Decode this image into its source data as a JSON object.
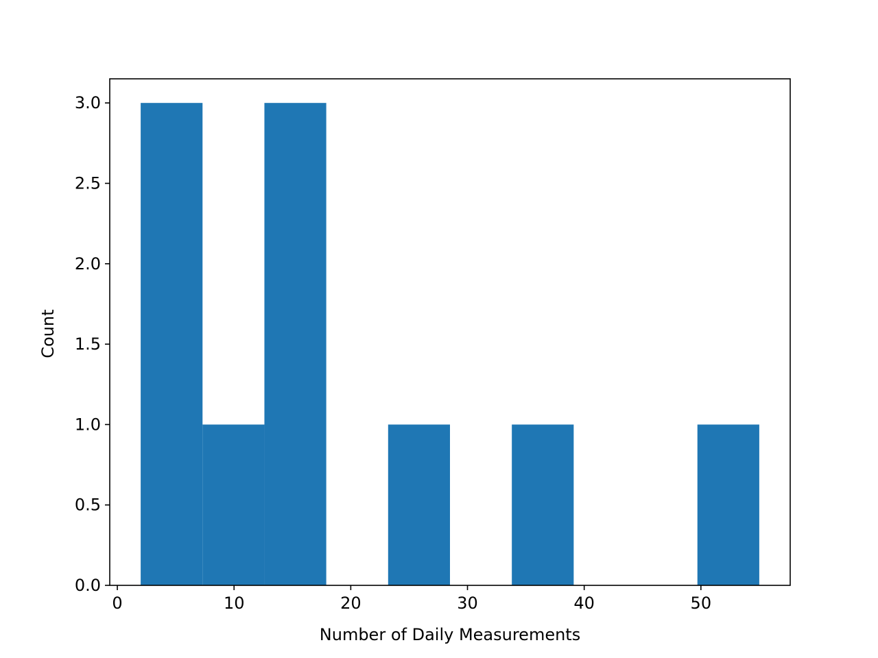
{
  "chart_data": {
    "type": "bar",
    "subtype": "histogram",
    "title": "",
    "xlabel": "Number of Daily Measurements",
    "ylabel": "Count",
    "xlim": [
      -0.65,
      57.65
    ],
    "ylim": [
      0,
      3.15
    ],
    "bin_edges": [
      2,
      7.3,
      12.6,
      17.9,
      23.2,
      28.5,
      33.8,
      39.1,
      44.4,
      49.7,
      55
    ],
    "counts": [
      3,
      1,
      3,
      0,
      1,
      0,
      1,
      0,
      0,
      1
    ],
    "x_ticks": [
      0,
      10,
      20,
      30,
      40,
      50
    ],
    "x_tick_labels": [
      "0",
      "10",
      "20",
      "30",
      "40",
      "50"
    ],
    "y_ticks": [
      0,
      0.5,
      1,
      1.5,
      2,
      2.5,
      3
    ],
    "y_tick_labels": [
      "0.0",
      "0.5",
      "1.0",
      "1.5",
      "2.0",
      "2.5",
      "3.0"
    ],
    "grid": false,
    "legend": "none",
    "colors": {
      "bar": "#1f77b4"
    }
  }
}
